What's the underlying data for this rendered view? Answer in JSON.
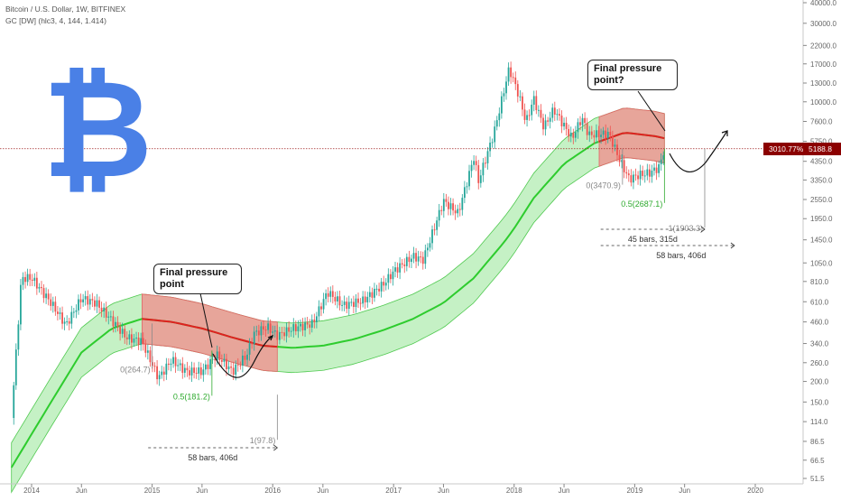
{
  "header": {
    "title": "Bitcoin / U.S. Dollar, 1W, BITFINEX",
    "indicator": "GC [DW] (hlc3, 4, 144, 1.414)"
  },
  "price_badge": {
    "pct": "3010.77%",
    "price": "5188.8"
  },
  "callouts": {
    "left": "Final pressure point",
    "right": "Final pressure point?"
  },
  "colors": {
    "bitcoin_logo": "#4a80e6",
    "up": "#26a69a",
    "down": "#ef5350",
    "green_band": "#7fe07f",
    "red_band": "#f28b8b",
    "badge": "#8b0000"
  },
  "chart_data": {
    "type": "candlestick",
    "yscale": "log",
    "ylim": [
      51.5,
      48000
    ],
    "y_ticks": [
      "51.5",
      "66.5",
      "86.5",
      "114.0",
      "150.0",
      "200.0",
      "260.0",
      "340.0",
      "460.0",
      "610.0",
      "810.0",
      "1050.0",
      "1450.0",
      "1950.0",
      "2550.0",
      "3350.0",
      "4350.0",
      "5750.0",
      "7600.0",
      "10000.0",
      "13000.0",
      "17000.0",
      "22000.0",
      "30000.0",
      "40000.0"
    ],
    "x_ticks": [
      "2014",
      "Jun",
      "2015",
      "Jun",
      "2016",
      "Jun",
      "2017",
      "Jun",
      "2018",
      "Jun",
      "2019",
      "Jun",
      "2020"
    ],
    "price_series": [
      [
        "2013-11-01",
        120
      ],
      [
        "2013-12-01",
        850
      ],
      [
        "2014-01-01",
        850
      ],
      [
        "2014-03-01",
        600
      ],
      [
        "2014-04-15",
        440
      ],
      [
        "2014-06-01",
        640
      ],
      [
        "2014-07-15",
        600
      ],
      [
        "2014-09-01",
        470
      ],
      [
        "2014-10-15",
        370
      ],
      [
        "2014-12-01",
        350
      ],
      [
        "2015-01-20",
        210
      ],
      [
        "2015-03-01",
        270
      ],
      [
        "2015-04-15",
        230
      ],
      [
        "2015-06-01",
        230
      ],
      [
        "2015-07-15",
        290
      ],
      [
        "2015-09-01",
        230
      ],
      [
        "2015-10-15",
        290
      ],
      [
        "2015-11-05",
        390
      ],
      [
        "2015-12-15",
        430
      ],
      [
        "2016-01-15",
        380
      ],
      [
        "2016-03-01",
        420
      ],
      [
        "2016-05-01",
        450
      ],
      [
        "2016-06-15",
        700
      ],
      [
        "2016-08-01",
        580
      ],
      [
        "2016-10-01",
        620
      ],
      [
        "2016-12-01",
        780
      ],
      [
        "2017-01-05",
        950
      ],
      [
        "2017-03-01",
        1150
      ],
      [
        "2017-04-01",
        1100
      ],
      [
        "2017-06-01",
        2500
      ],
      [
        "2017-07-15",
        2100
      ],
      [
        "2017-09-01",
        4600
      ],
      [
        "2017-09-15",
        3300
      ],
      [
        "2017-11-01",
        6500
      ],
      [
        "2017-12-17",
        16000
      ],
      [
        "2018-01-15",
        11000
      ],
      [
        "2018-02-06",
        7500
      ],
      [
        "2018-03-01",
        10500
      ],
      [
        "2018-04-01",
        7000
      ],
      [
        "2018-05-01",
        9000
      ],
      [
        "2018-06-25",
        6000
      ],
      [
        "2018-07-25",
        8000
      ],
      [
        "2018-08-15",
        6300
      ],
      [
        "2018-10-15",
        6400
      ],
      [
        "2018-11-15",
        4500
      ],
      [
        "2018-12-15",
        3400
      ],
      [
        "2019-01-15",
        3600
      ],
      [
        "2019-02-15",
        3700
      ],
      [
        "2019-03-15",
        4000
      ],
      [
        "2019-04-01",
        5188.8
      ]
    ],
    "band_center": [
      [
        "2013-11-01",
        60
      ],
      [
        "2014-03-01",
        150
      ],
      [
        "2014-06-01",
        300
      ],
      [
        "2014-09-01",
        420
      ],
      [
        "2014-12-01",
        480
      ],
      [
        "2015-03-01",
        460
      ],
      [
        "2015-06-01",
        420
      ],
      [
        "2015-09-01",
        370
      ],
      [
        "2015-12-01",
        330
      ],
      [
        "2016-03-01",
        320
      ],
      [
        "2016-06-01",
        330
      ],
      [
        "2016-09-01",
        360
      ],
      [
        "2016-12-01",
        410
      ],
      [
        "2017-03-01",
        480
      ],
      [
        "2017-06-01",
        600
      ],
      [
        "2017-09-01",
        850
      ],
      [
        "2017-12-01",
        1400
      ],
      [
        "2018-01-01",
        1700
      ],
      [
        "2018-03-01",
        2600
      ],
      [
        "2018-06-01",
        4200
      ],
      [
        "2018-09-01",
        5600
      ],
      [
        "2018-12-01",
        6500
      ],
      [
        "2019-03-01",
        6200
      ],
      [
        "2019-04-01",
        6000
      ]
    ],
    "band_factor": 1.414,
    "red_segments": [
      [
        "2014-12-01",
        "2016-01-15"
      ],
      [
        "2018-09-15",
        "2019-04-01"
      ]
    ],
    "current_price": 5188.8,
    "fib_left": [
      {
        "label": "0(264.7)",
        "value": 264.7,
        "date": "2015-01-01"
      },
      {
        "label": "0.5(181.2)",
        "value": 181.2,
        "date": "2015-07-01"
      },
      {
        "label": "1(97.8)",
        "value": 97.8,
        "date": "2016-01-15"
      }
    ],
    "fib_right": [
      {
        "label": "0(3470.9)",
        "value": 3470.9,
        "date": "2018-11-25"
      },
      {
        "label": "0.5(2687.1)",
        "value": 2687.1,
        "date": "2019-04-01"
      },
      {
        "label": "1(1903.3)",
        "value": 1903.3,
        "date": "2019-08-01"
      }
    ],
    "measures": [
      {
        "label": "58 bars, 406d",
        "from": "2014-12-20",
        "to": "2016-01-15"
      },
      {
        "label": "45 bars, 315d",
        "from": "2018-09-20",
        "to": "2019-08-01"
      },
      {
        "label": "58 bars, 406d",
        "from": "2018-09-20",
        "to": "2019-10-30"
      }
    ]
  }
}
